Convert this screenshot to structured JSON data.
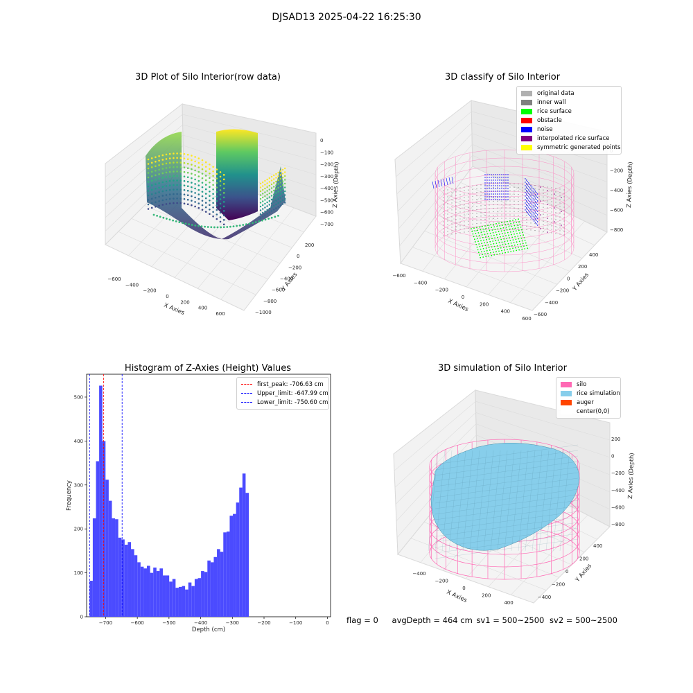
{
  "figure": {
    "suptitle": "DJSAD13 2025-04-22 16:25:30",
    "status": {
      "flag": "flag = 0",
      "avg_depth": "avgDepth = 464 cm",
      "sv1": "sv1 = 500~2500",
      "sv2": "sv2 = 500~2500"
    }
  },
  "colors": {
    "histogram_bar": "#4b4bff",
    "peak_line": "#ff0000",
    "limit_line": "#0000ff",
    "silo": "#ff69b4",
    "rice_simulation": "#87ceeb",
    "auger": "#ff4500",
    "original_data": "#b0b0b0",
    "inner_wall": "#808080",
    "rice_surface": "#00ff00",
    "obstacle": "#ff0000",
    "noise": "#0000ff",
    "interpolated_rice_surface": "#800080",
    "symmetric_generated_points": "#ffff00"
  },
  "chart_data": [
    {
      "type": "scatter",
      "title": "3D Plot of Silo Interior(row data)",
      "xlabel": "X Axies",
      "ylabel": "Y Axies",
      "zlabel": "Z Axies (Depth)",
      "x_ticks": [
        "−600",
        "−400",
        "−200",
        "0",
        "200",
        "400",
        "600"
      ],
      "y_ticks": [
        "200",
        "0",
        "−200",
        "−400",
        "−600",
        "−800",
        "−1000"
      ],
      "z_ticks": [
        "0",
        "−100",
        "−200",
        "−300",
        "−400",
        "−500",
        "−600",
        "−700"
      ],
      "colormap": "viridis"
    },
    {
      "type": "scatter",
      "title": "3D classify of Silo Interior",
      "xlabel": "X Axies",
      "ylabel": "Y Axies",
      "zlabel": "Z Axies (Depth)",
      "x_ticks": [
        "−600",
        "−400",
        "−200",
        "0",
        "200",
        "400",
        "600"
      ],
      "y_ticks": [
        "400",
        "200",
        "0",
        "−200",
        "−400",
        "−600"
      ],
      "z_ticks": [
        "0",
        "−200",
        "−400",
        "−600",
        "−800"
      ],
      "legend": [
        {
          "label": "original data",
          "color": "#b0b0b0"
        },
        {
          "label": "inner wall",
          "color": "#808080"
        },
        {
          "label": "rice surface",
          "color": "#00ff00"
        },
        {
          "label": "obstacle",
          "color": "#ff0000"
        },
        {
          "label": "noise",
          "color": "#0000ff"
        },
        {
          "label": "interpolated rice surface",
          "color": "#800080"
        },
        {
          "label": "symmetric generated points",
          "color": "#ffff00"
        }
      ],
      "legend_position": "top-right"
    },
    {
      "type": "bar",
      "title": "Histogram of Z-Axies (Height) Values",
      "xlabel": "Depth (cm)",
      "ylabel": "Frequency",
      "xlim": [
        -760,
        10
      ],
      "ylim": [
        0,
        552
      ],
      "x_ticks": [
        -700,
        -600,
        -500,
        -400,
        -300,
        -200,
        -100,
        0
      ],
      "x_tick_labels": [
        "−700",
        "−600",
        "−500",
        "−400",
        "−300",
        "−200",
        "−100",
        "0"
      ],
      "y_ticks": [
        0,
        100,
        200,
        300,
        400,
        500
      ],
      "bin_start": -750.6,
      "bin_width": 10.05,
      "values": [
        82,
        224,
        354,
        526,
        400,
        312,
        264,
        224,
        222,
        180,
        176,
        164,
        170,
        154,
        140,
        124,
        114,
        110,
        116,
        100,
        112,
        104,
        110,
        94,
        94,
        80,
        86,
        66,
        68,
        70,
        62,
        78,
        70,
        86,
        88,
        104,
        102,
        128,
        124,
        136,
        154,
        148,
        192,
        194,
        230,
        234,
        260,
        294,
        326,
        282
      ],
      "vlines": [
        {
          "label": "first_peak: -706.63 cm",
          "x": -706.63,
          "color": "#ff0000"
        },
        {
          "label": "Upper_limit: -647.99 cm",
          "x": -647.99,
          "color": "#0000ff"
        },
        {
          "label": "Lower_limit: -750.60 cm",
          "x": -750.6,
          "color": "#0000ff"
        }
      ],
      "legend_position": "top-right"
    },
    {
      "type": "area",
      "title": "3D simulation of Silo Interior",
      "xlabel": "X Axies",
      "ylabel": "Y Axies",
      "zlabel": "Z Axies (Depth)",
      "x_ticks": [
        "−400",
        "−200",
        "0",
        "200",
        "400"
      ],
      "y_ticks": [
        "400",
        "200",
        "0",
        "−200",
        "−400"
      ],
      "z_ticks": [
        "200",
        "0",
        "−200",
        "−400",
        "−600",
        "−800"
      ],
      "legend": [
        {
          "label": "silo",
          "color": "#ff69b4"
        },
        {
          "label": "rice simulation",
          "color": "#87ceeb"
        },
        {
          "label": "auger",
          "color": "#ff4500"
        },
        {
          "label": "center(0,0)",
          "color": "#ffffff"
        }
      ],
      "legend_position": "top-right"
    }
  ]
}
